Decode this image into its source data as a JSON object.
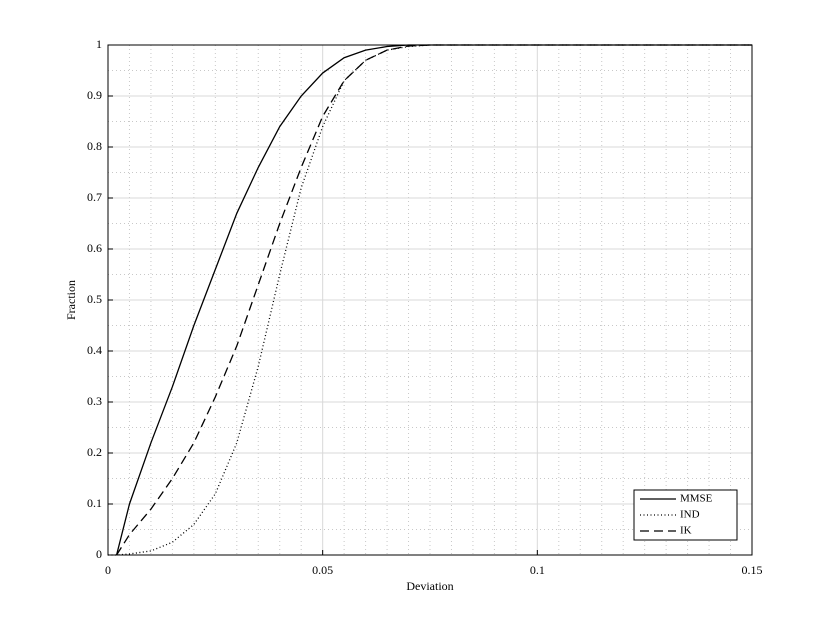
{
  "chart_data": {
    "type": "line",
    "xlabel": "Deviation",
    "ylabel": "Fraction",
    "x": [
      0,
      0.002,
      0.005,
      0.01,
      0.015,
      0.02,
      0.025,
      0.03,
      0.035,
      0.04,
      0.045,
      0.05,
      0.055,
      0.06,
      0.065,
      0.07,
      0.075,
      0.15
    ],
    "series": [
      {
        "name": "MMSE",
        "color": "#000000",
        "dash": "solid",
        "values": [
          null,
          0,
          0.1,
          0.22,
          0.33,
          0.45,
          0.56,
          0.67,
          0.76,
          0.84,
          0.9,
          0.945,
          0.975,
          0.99,
          0.997,
          1,
          1,
          1
        ]
      },
      {
        "name": "IND",
        "color": "#000000",
        "dash": "dotted",
        "values": [
          0,
          0,
          0.002,
          0.008,
          0.025,
          0.06,
          0.12,
          0.22,
          0.37,
          0.55,
          0.72,
          0.84,
          0.93,
          0.97,
          0.99,
          0.997,
          1,
          1
        ]
      },
      {
        "name": "IK",
        "color": "#000000",
        "dash": "dashed",
        "values": [
          null,
          0,
          0.04,
          0.09,
          0.15,
          0.22,
          0.31,
          0.41,
          0.53,
          0.65,
          0.76,
          0.86,
          0.93,
          0.97,
          0.99,
          0.998,
          1,
          1
        ]
      }
    ],
    "xlim": [
      0,
      0.15
    ],
    "xticks": [
      0,
      0.05,
      0.1,
      0.15
    ],
    "ylim": [
      0,
      1
    ],
    "yticks": [
      0,
      0.1,
      0.2,
      0.3,
      0.4,
      0.5,
      0.6,
      0.7,
      0.8,
      0.9,
      1
    ],
    "xminorticks": [
      0.005,
      0.01,
      0.015,
      0.02,
      0.025,
      0.03,
      0.035,
      0.04,
      0.045,
      0.055,
      0.06,
      0.065,
      0.07,
      0.075,
      0.08,
      0.085,
      0.09,
      0.095,
      0.105,
      0.11,
      0.115,
      0.12,
      0.125,
      0.13,
      0.135,
      0.14,
      0.145
    ],
    "yminorticks": [
      0.05,
      0.15,
      0.25,
      0.35,
      0.45,
      0.55,
      0.65,
      0.75,
      0.85,
      0.95
    ],
    "grid": true,
    "legend": "lower right"
  }
}
